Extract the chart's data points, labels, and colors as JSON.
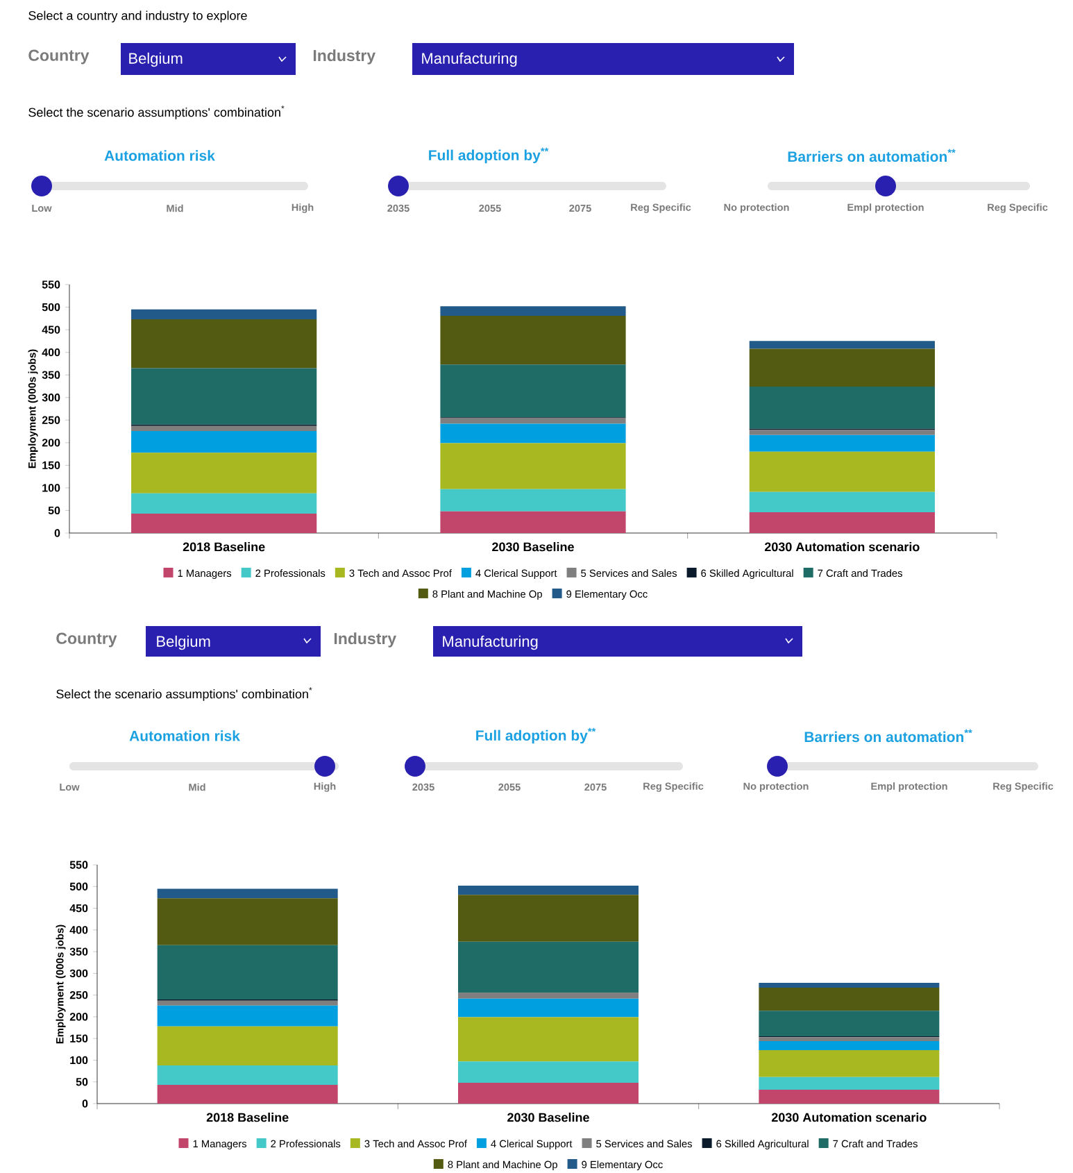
{
  "chart_data": [
    {
      "type": "other",
      "title": "Select a country and industry to explore",
      "annotations": [
        "Country",
        "Belgium",
        "Industry",
        "Manufacturing",
        "Select the scenario assumptions' combination$^{*}$",
        "Automation risk",
        "Full adoption by$^{**}$",
        "Barriers on automation$^{**}$",
        "Low",
        "Mid",
        "High",
        "2035",
        "2055",
        "2075",
        "Reg Specific",
        "No protection",
        "Empl protection",
        "Reg Specific"
      ]
    },
    {
      "type": "bar",
      "stacked": true,
      "legend": "bottom",
      "ylabel": "Employment (000s jobs)",
      "categories": [
        "2018 Baseline",
        "2030 Baseline",
        "2030 Automation scenario"
      ],
      "ylim": [
        0,
        550
      ],
      "yticks": [
        0,
        50,
        100,
        150,
        200,
        250,
        300,
        350,
        400,
        450,
        500,
        550
      ],
      "series": [
        {
          "name": "1 Managers",
          "color": "#c2456b",
          "values": [
            43,
            48,
            46
          ]
        },
        {
          "name": "2 Professionals",
          "color": "#45c8c8",
          "values": [
            45,
            49,
            45
          ]
        },
        {
          "name": "3 Tech and Assoc Prof",
          "color": "#a8b820",
          "values": [
            90,
            102,
            89
          ]
        },
        {
          "name": "4 Clerical Support",
          "color": "#00a0e0",
          "values": [
            48,
            43,
            37
          ]
        },
        {
          "name": "5 Services and Sales",
          "color": "#7f7f7f",
          "values": [
            11,
            13,
            11
          ]
        },
        {
          "name": "6 Skilled Agricultural",
          "color": "#0a1a2a",
          "values": [
            3,
            1,
            3
          ]
        },
        {
          "name": "7 Craft and Trades",
          "color": "#1f6b66",
          "values": [
            125,
            117,
            93
          ]
        },
        {
          "name": "8 Plant and Machine Op",
          "color": "#535a12",
          "values": [
            108,
            108,
            84
          ]
        },
        {
          "name": "9 Elementary Occ",
          "color": "#225a8a",
          "values": [
            22,
            21,
            17
          ]
        }
      ]
    },
    {
      "type": "other",
      "annotations": [
        "Country",
        "Belgium",
        "Industry",
        "Manufacturing",
        "Select the scenario assumptions' combination$^{*}$",
        "Automation risk",
        "Full adoption by$^{**}$",
        "Barriers on automation$^{**}$",
        "Low",
        "Mid",
        "High",
        "2035",
        "2055",
        "2075",
        "Reg Specific",
        "No protection",
        "Empl protection",
        "Reg Specific"
      ]
    },
    {
      "type": "bar",
      "stacked": true,
      "legend": "bottom",
      "ylabel": "Employment (000s jobs)",
      "categories": [
        "2018 Baseline",
        "2030 Baseline",
        "2030 Automation scenario"
      ],
      "ylim": [
        0,
        550
      ],
      "yticks": [
        0,
        50,
        100,
        150,
        200,
        250,
        300,
        350,
        400,
        450,
        500,
        550
      ],
      "series": [
        {
          "name": "1 Managers",
          "color": "#c2456b",
          "values": [
            43,
            48,
            32
          ]
        },
        {
          "name": "2 Professionals",
          "color": "#45c8c8",
          "values": [
            45,
            49,
            29
          ]
        },
        {
          "name": "3 Tech and Assoc Prof",
          "color": "#a8b820",
          "values": [
            90,
            102,
            62
          ]
        },
        {
          "name": "4 Clerical Support",
          "color": "#00a0e0",
          "values": [
            48,
            43,
            21
          ]
        },
        {
          "name": "5 Services and Sales",
          "color": "#7f7f7f",
          "values": [
            11,
            13,
            9
          ]
        },
        {
          "name": "6 Skilled Agricultural",
          "color": "#0a1a2a",
          "values": [
            3,
            1,
            2
          ]
        },
        {
          "name": "7 Craft and Trades",
          "color": "#1f6b66",
          "values": [
            125,
            117,
            59
          ]
        },
        {
          "name": "8 Plant and Machine Op",
          "color": "#535a12",
          "values": [
            108,
            108,
            53
          ]
        },
        {
          "name": "9 Elementary Occ",
          "color": "#225a8a",
          "values": [
            22,
            21,
            11
          ]
        }
      ]
    }
  ]
}
